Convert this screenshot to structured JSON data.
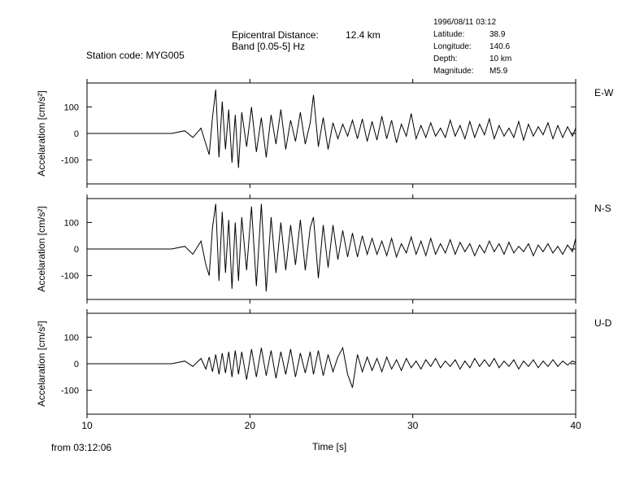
{
  "header": {
    "station": "Station code: MYG005",
    "distance_label": "Epicentral Distance:",
    "distance_value": "12.4 km",
    "band": "Band [0.05-5] Hz"
  },
  "event": {
    "datetime": "1996/08/11 03:12",
    "rows": [
      {
        "label": "Latitude:",
        "value": "38.9"
      },
      {
        "label": "Longitude:",
        "value": "140.6"
      },
      {
        "label": "Depth:",
        "value": "10 km"
      },
      {
        "label": "Magnitude:",
        "value": "M5.9"
      }
    ]
  },
  "chart_data": {
    "type": "line",
    "xlabel": "Time [s]",
    "x_note": "from 03:12:06",
    "xlim": [
      10,
      40
    ],
    "x_ticks": [
      10,
      20,
      30,
      40
    ],
    "ylim": [
      -190,
      190
    ],
    "y_ticks": [
      100,
      0,
      -100
    ],
    "y_tick_labels": [
      "100",
      "0",
      "-100"
    ],
    "grid": false,
    "series": [
      {
        "name": "E-W",
        "ylabel": "Accelaration [cm/s²]",
        "x": [
          10,
          15.2,
          16,
          16.5,
          17,
          17.3,
          17.5,
          17.7,
          17.9,
          18.1,
          18.3,
          18.5,
          18.7,
          18.9,
          19.1,
          19.3,
          19.5,
          19.8,
          20.1,
          20.4,
          20.7,
          21,
          21.3,
          21.6,
          21.9,
          22.2,
          22.5,
          22.8,
          23.1,
          23.4,
          23.7,
          23.9,
          24.2,
          24.5,
          24.8,
          25.1,
          25.4,
          25.7,
          26,
          26.3,
          26.6,
          26.9,
          27.2,
          27.5,
          27.8,
          28.1,
          28.4,
          28.7,
          29,
          29.3,
          29.6,
          29.9,
          30.2,
          30.5,
          30.8,
          31.1,
          31.4,
          31.7,
          32,
          32.3,
          32.6,
          32.9,
          33.2,
          33.5,
          33.8,
          34.1,
          34.4,
          34.7,
          35,
          35.3,
          35.6,
          35.9,
          36.2,
          36.5,
          36.8,
          37.1,
          37.4,
          37.7,
          38,
          38.3,
          38.6,
          38.9,
          39.2,
          39.5,
          39.8,
          40
        ],
        "y": [
          0,
          0,
          10,
          -15,
          20,
          -40,
          -80,
          60,
          165,
          -90,
          120,
          -60,
          90,
          -110,
          70,
          -130,
          80,
          -50,
          100,
          -70,
          60,
          -90,
          70,
          -40,
          90,
          -60,
          50,
          -30,
          80,
          -40,
          40,
          145,
          -50,
          60,
          -60,
          40,
          -20,
          35,
          -10,
          50,
          -20,
          55,
          -30,
          45,
          -25,
          65,
          -20,
          50,
          -35,
          35,
          -10,
          75,
          -20,
          30,
          -15,
          40,
          -10,
          20,
          -15,
          50,
          -10,
          30,
          -20,
          45,
          -15,
          35,
          -5,
          55,
          -20,
          30,
          -10,
          20,
          -15,
          45,
          -25,
          35,
          -10,
          25,
          -5,
          40,
          -20,
          30,
          -15,
          25,
          -10,
          20
        ]
      },
      {
        "name": "N-S",
        "ylabel": "Accelaration [cm/s²]",
        "x": [
          10,
          15.2,
          16,
          16.5,
          17,
          17.3,
          17.5,
          17.7,
          17.9,
          18.1,
          18.3,
          18.5,
          18.7,
          18.9,
          19.1,
          19.3,
          19.5,
          19.8,
          20.1,
          20.4,
          20.7,
          21,
          21.3,
          21.6,
          21.9,
          22.2,
          22.5,
          22.8,
          23.1,
          23.4,
          23.7,
          23.9,
          24.2,
          24.5,
          24.8,
          25.1,
          25.4,
          25.7,
          26,
          26.3,
          26.6,
          26.9,
          27.2,
          27.5,
          27.8,
          28.1,
          28.4,
          28.7,
          29,
          29.3,
          29.6,
          29.9,
          30.2,
          30.5,
          30.8,
          31.1,
          31.4,
          31.7,
          32,
          32.3,
          32.6,
          32.9,
          33.2,
          33.5,
          33.8,
          34.1,
          34.4,
          34.7,
          35,
          35.3,
          35.6,
          35.9,
          36.2,
          36.5,
          36.8,
          37.1,
          37.4,
          37.7,
          38,
          38.3,
          38.6,
          38.9,
          39.2,
          39.5,
          39.8,
          40
        ],
        "y": [
          0,
          0,
          10,
          -20,
          30,
          -60,
          -100,
          80,
          170,
          -120,
          140,
          -90,
          110,
          -150,
          100,
          -120,
          120,
          -80,
          160,
          -140,
          170,
          -160,
          120,
          -90,
          100,
          -80,
          90,
          -60,
          110,
          -80,
          80,
          120,
          -110,
          90,
          -70,
          90,
          -40,
          70,
          -30,
          60,
          -30,
          50,
          -20,
          40,
          -20,
          30,
          -25,
          40,
          -30,
          20,
          -15,
          45,
          -20,
          30,
          -25,
          40,
          -20,
          20,
          -15,
          35,
          -20,
          25,
          -10,
          20,
          -25,
          15,
          -15,
          30,
          -10,
          20,
          -20,
          25,
          -15,
          10,
          -10,
          20,
          -25,
          15,
          -10,
          20,
          -15,
          10,
          -20,
          15,
          -10,
          40
        ]
      },
      {
        "name": "U-D",
        "ylabel": "Accelaration [cm/s²]",
        "x": [
          10,
          15.2,
          16,
          16.5,
          17,
          17.3,
          17.5,
          17.7,
          17.9,
          18.1,
          18.3,
          18.5,
          18.7,
          18.9,
          19.1,
          19.3,
          19.5,
          19.8,
          20.1,
          20.4,
          20.7,
          21,
          21.3,
          21.6,
          21.9,
          22.2,
          22.5,
          22.8,
          23.1,
          23.4,
          23.7,
          23.9,
          24.2,
          24.5,
          24.8,
          25.1,
          25.4,
          25.7,
          26,
          26.3,
          26.6,
          26.9,
          27.2,
          27.5,
          27.8,
          28.1,
          28.4,
          28.7,
          29,
          29.3,
          29.6,
          29.9,
          30.2,
          30.5,
          30.8,
          31.1,
          31.4,
          31.7,
          32,
          32.3,
          32.6,
          32.9,
          33.2,
          33.5,
          33.8,
          34.1,
          34.4,
          34.7,
          35,
          35.3,
          35.6,
          35.9,
          36.2,
          36.5,
          36.8,
          37.1,
          37.4,
          37.7,
          38,
          38.3,
          38.6,
          38.9,
          39.2,
          39.5,
          39.8,
          40
        ],
        "y": [
          0,
          0,
          10,
          -10,
          20,
          -20,
          25,
          -30,
          35,
          -40,
          40,
          -35,
          45,
          -50,
          50,
          -40,
          45,
          -60,
          55,
          -50,
          60,
          -45,
          50,
          -55,
          45,
          -40,
          55,
          -50,
          40,
          -35,
          45,
          -40,
          50,
          -45,
          35,
          -30,
          25,
          60,
          -40,
          -90,
          35,
          -30,
          25,
          -25,
          20,
          -30,
          25,
          -20,
          15,
          -25,
          20,
          -15,
          10,
          -20,
          15,
          -10,
          20,
          -15,
          10,
          -10,
          15,
          -20,
          10,
          -15,
          20,
          -10,
          15,
          -10,
          20,
          -15,
          10,
          -10,
          15,
          -20,
          10,
          -10,
          15,
          -15,
          10,
          -10,
          15,
          -10,
          10,
          -5,
          10,
          5
        ]
      }
    ]
  }
}
